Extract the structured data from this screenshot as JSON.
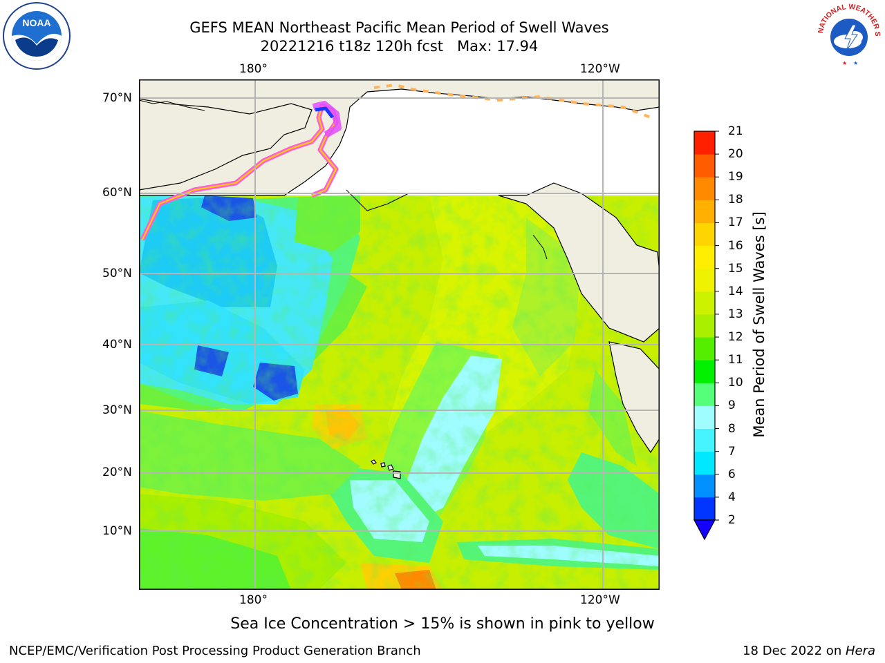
{
  "title": {
    "line1": "GEFS MEAN Northeast Pacific Mean Period of Swell Waves",
    "line2": "20221216 t18z 120h fcst   Max: 17.94"
  },
  "logos": {
    "left": {
      "text": "NOAA",
      "icon": "noaa-logo"
    },
    "right": {
      "text": "NATIONAL WEATHER SERVICE",
      "icon": "nws-logo"
    }
  },
  "map": {
    "region": "Northeast Pacific",
    "lat_labels": [
      "70°N",
      "60°N",
      "50°N",
      "40°N",
      "30°N",
      "20°N",
      "10°N"
    ],
    "lon_labels_top": [
      "180°",
      "120°W"
    ],
    "lon_labels_bottom": [
      "180°",
      "120°W"
    ],
    "gridlines": true,
    "land_color": "#efeee0",
    "ocean_field": "Mean Period of Swell Waves"
  },
  "colorbar": {
    "title": "Mean Period of Swell Waves [s]",
    "ticks": [
      "2",
      "4",
      "6",
      "7",
      "8",
      "9",
      "10",
      "11",
      "12",
      "13",
      "14",
      "15",
      "16",
      "17",
      "18",
      "19",
      "20",
      "21"
    ],
    "colors": [
      "#0035ff",
      "#0090ff",
      "#00e8ff",
      "#46f4ff",
      "#9ffcff",
      "#55ff7a",
      "#00f000",
      "#55ee00",
      "#aaee00",
      "#ccf200",
      "#eef200",
      "#ffee00",
      "#ffd500",
      "#ffb000",
      "#ff8a00",
      "#ff5c00",
      "#ff2000"
    ],
    "extend_min_color": "#1400ff"
  },
  "note": "Sea Ice Concentration > 15% is shown in pink to yellow",
  "footer": {
    "left": "NCEP/EMC/Verification Post Processing Product Generation Branch",
    "right_date": "18 Dec 2022 on ",
    "right_machine": "Hera"
  }
}
